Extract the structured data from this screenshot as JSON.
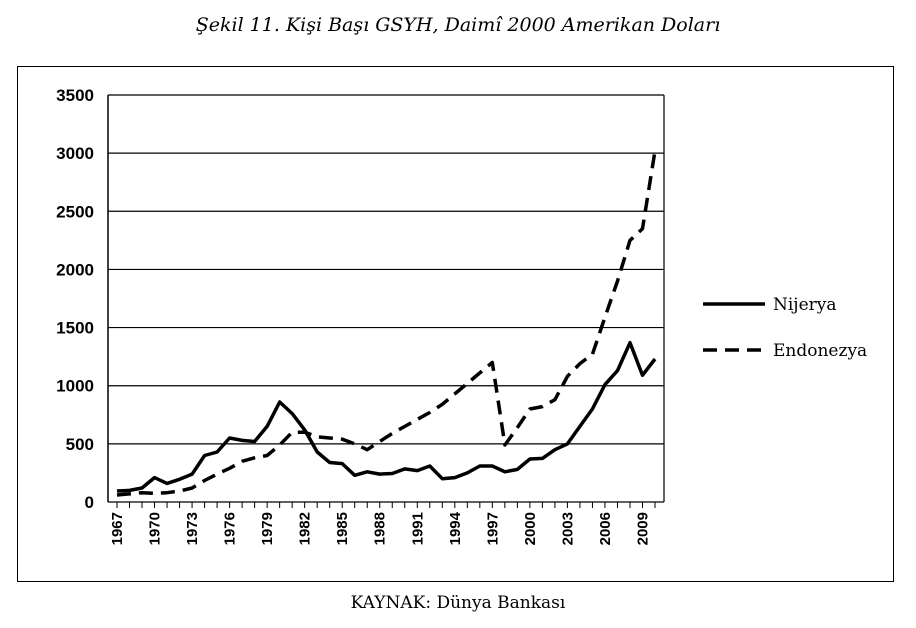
{
  "title": "Şekil 11. Kişi Başı GSYH, Daimî 2000 Amerikan Doları",
  "source": "KAYNAK: Dünya Bankası",
  "chart_data": {
    "type": "line",
    "ylim": [
      0,
      3500
    ],
    "yticks": [
      "0",
      "500",
      "1000",
      "1500",
      "2000",
      "2500",
      "3000",
      "3500"
    ],
    "xticks": [
      "1967",
      "1970",
      "1973",
      "1976",
      "1979",
      "1982",
      "1985",
      "1988",
      "1991",
      "1994",
      "1997",
      "2000",
      "2003",
      "2006",
      "2009"
    ],
    "grid": true,
    "legend_position": "right",
    "x": [
      1967,
      1968,
      1969,
      1970,
      1971,
      1972,
      1973,
      1974,
      1975,
      1976,
      1977,
      1978,
      1979,
      1980,
      1981,
      1982,
      1983,
      1984,
      1985,
      1986,
      1987,
      1988,
      1989,
      1990,
      1991,
      1992,
      1993,
      1994,
      1995,
      1996,
      1997,
      1998,
      1999,
      2000,
      2001,
      2002,
      2003,
      2004,
      2005,
      2006,
      2007,
      2008,
      2009,
      2010
    ],
    "series": [
      {
        "name": "Nijerya",
        "style": "solid",
        "color": "#000000",
        "values": [
          95,
          100,
          120,
          210,
          160,
          195,
          240,
          400,
          430,
          550,
          530,
          520,
          650,
          860,
          760,
          620,
          430,
          340,
          330,
          230,
          260,
          240,
          245,
          285,
          270,
          310,
          200,
          210,
          250,
          310,
          310,
          260,
          280,
          370,
          375,
          450,
          500,
          650,
          800,
          1010,
          1130,
          1370,
          1090,
          1230
        ]
      },
      {
        "name": "Endonezya",
        "style": "dashed",
        "color": "#000000",
        "values": [
          60,
          70,
          80,
          75,
          80,
          95,
          120,
          185,
          240,
          290,
          350,
          380,
          400,
          490,
          600,
          600,
          560,
          550,
          540,
          500,
          450,
          520,
          590,
          650,
          710,
          770,
          840,
          930,
          1020,
          1110,
          1200,
          490,
          640,
          800,
          820,
          880,
          1080,
          1190,
          1270,
          1590,
          1900,
          2250,
          2350,
          3020
        ]
      }
    ]
  }
}
